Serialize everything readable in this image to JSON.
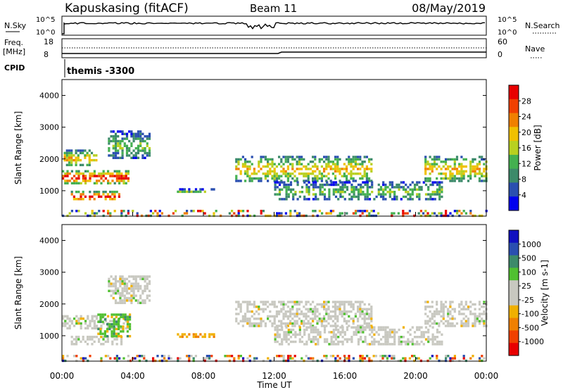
{
  "header": {
    "station": "Kapuskasing (fitACF)",
    "beam": "Beam 11",
    "date": "08/May/2019"
  },
  "top_panels": {
    "nsky_label": "N.Sky",
    "nsky_ticks": [
      "10^5",
      "10^0"
    ],
    "nsearch_label": "N.Search",
    "nsearch_ticks": [
      "10^5",
      "10^0"
    ],
    "freq_label": "Freq.",
    "freq_unit": "[MHz]",
    "freq_ticks": [
      "18",
      "8"
    ],
    "nave_label": "Nave",
    "nave_ticks": [
      "60",
      "0"
    ],
    "cpid_label": "CPID",
    "cpid_value": "themis -3300"
  },
  "colors": {
    "power": [
      "#0000ee",
      "#2a4fb0",
      "#3c8a6a",
      "#44b050",
      "#b8d020",
      "#f0c000",
      "#f08000",
      "#f04000",
      "#e80000"
    ],
    "velocity": [
      "#e80000",
      "#f04000",
      "#f08000",
      "#f0b000",
      "#c8c8c0",
      "#c8c8c0",
      "#50c030",
      "#3c8a6a",
      "#2a4fb0",
      "#1010c0"
    ]
  },
  "chart_data": [
    {
      "type": "heatmap",
      "title": "",
      "xlabel": "Time UT",
      "ylabel": "Slant Range [km]",
      "x_ticks": [
        "00:00",
        "04:00",
        "08:00",
        "12:00",
        "16:00",
        "20:00",
        "00:00"
      ],
      "xlim_hours": [
        0,
        24
      ],
      "y_ticks": [
        "1000",
        "2000",
        "3000",
        "4000"
      ],
      "ylim": [
        200,
        4500
      ],
      "colorbar_label": "Power [dB]",
      "colorbar_ticks": [
        "4",
        "8",
        "12",
        "16",
        "20",
        "24",
        "28"
      ],
      "regions": [
        {
          "t0": 0.0,
          "t1": 3.8,
          "r0": 1250,
          "r1": 1650,
          "level": "high"
        },
        {
          "t0": 0.5,
          "t1": 3.4,
          "r0": 700,
          "r1": 1000,
          "level": "high"
        },
        {
          "t0": 0.1,
          "t1": 2.0,
          "r0": 1800,
          "r1": 2300,
          "level": "mid"
        },
        {
          "t0": 2.6,
          "t1": 5.0,
          "r0": 2000,
          "r1": 2900,
          "level": "low"
        },
        {
          "t0": 6.5,
          "t1": 8.6,
          "r0": 950,
          "r1": 1080,
          "level": "low"
        },
        {
          "t0": 9.8,
          "t1": 17.5,
          "r0": 1300,
          "r1": 2100,
          "level": "mid"
        },
        {
          "t0": 12.0,
          "t1": 21.5,
          "r0": 700,
          "r1": 1300,
          "level": "low"
        },
        {
          "t0": 20.5,
          "t1": 24.0,
          "r0": 1300,
          "r1": 2100,
          "level": "mid"
        },
        {
          "t0": 0.0,
          "t1": 24.0,
          "r0": 200,
          "r1": 400,
          "level": "noise"
        }
      ]
    },
    {
      "type": "heatmap",
      "title": "",
      "xlabel": "Time UT",
      "ylabel": "Slant Range [km]",
      "x_ticks": [
        "00:00",
        "04:00",
        "08:00",
        "12:00",
        "16:00",
        "20:00",
        "00:00"
      ],
      "xlim_hours": [
        0,
        24
      ],
      "y_ticks": [
        "1000",
        "2000",
        "3000",
        "4000"
      ],
      "ylim": [
        200,
        4500
      ],
      "colorbar_label": "Velocity [m s-1]",
      "colorbar_ticks": [
        "1000",
        "500",
        "100",
        "25",
        "-25",
        "-100",
        "-500",
        "-1000"
      ],
      "regions": [
        {
          "t0": 0.0,
          "t1": 3.8,
          "r0": 1250,
          "r1": 1650,
          "level": "ground"
        },
        {
          "t0": 0.5,
          "t1": 3.4,
          "r0": 700,
          "r1": 1000,
          "level": "ground"
        },
        {
          "t0": 2.0,
          "t1": 3.8,
          "r0": 1000,
          "r1": 1700,
          "level": "green"
        },
        {
          "t0": 2.6,
          "t1": 5.0,
          "r0": 2000,
          "r1": 2900,
          "level": "ground"
        },
        {
          "t0": 6.5,
          "t1": 8.6,
          "r0": 950,
          "r1": 1080,
          "level": "orange"
        },
        {
          "t0": 9.8,
          "t1": 17.5,
          "r0": 1300,
          "r1": 2100,
          "level": "ground"
        },
        {
          "t0": 12.0,
          "t1": 21.5,
          "r0": 700,
          "r1": 1300,
          "level": "ground"
        },
        {
          "t0": 20.5,
          "t1": 24.0,
          "r0": 1300,
          "r1": 2100,
          "level": "ground"
        },
        {
          "t0": 0.0,
          "t1": 24.0,
          "r0": 200,
          "r1": 400,
          "level": "noise"
        }
      ]
    }
  ]
}
